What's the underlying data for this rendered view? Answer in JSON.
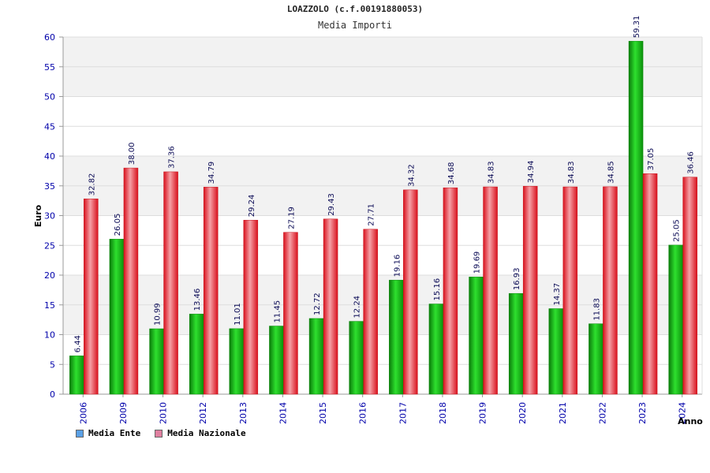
{
  "title": "LOAZZOLO (c.f.00191880053)",
  "subtitle": "Media Importi",
  "colors": {
    "ente": "#19b219",
    "nazionale": "#e8202a",
    "legend_ente": "#5aa0e6",
    "legend_nazionale": "#e080a0",
    "tick_text": "#0000aa",
    "band": "#f2f2f2"
  },
  "legend": [
    {
      "label": "Media Ente",
      "color_key": "legend_ente"
    },
    {
      "label": "Media Nazionale",
      "color_key": "legend_nazionale"
    }
  ],
  "chart_data": {
    "type": "bar",
    "title": "LOAZZOLO (c.f.00191880053)",
    "subtitle": "Media Importi",
    "xlabel": "Anno",
    "ylabel": "Euro",
    "ylim": [
      0,
      60
    ],
    "yticks": [
      0,
      5,
      10,
      15,
      20,
      25,
      30,
      35,
      40,
      45,
      50,
      55,
      60
    ],
    "grid": true,
    "legend_position": "bottom-left",
    "categories": [
      "2006",
      "2009",
      "2010",
      "2012",
      "2013",
      "2014",
      "2015",
      "2016",
      "2017",
      "2018",
      "2019",
      "2020",
      "2021",
      "2022",
      "2023",
      "2024"
    ],
    "series": [
      {
        "name": "Media Ente",
        "values": [
          6.44,
          26.05,
          10.99,
          13.46,
          11.01,
          11.45,
          12.72,
          12.24,
          19.16,
          15.16,
          19.69,
          16.93,
          14.37,
          11.83,
          59.31,
          25.05
        ]
      },
      {
        "name": "Media Nazionale",
        "values": [
          32.82,
          38.0,
          37.36,
          34.79,
          29.24,
          27.19,
          29.43,
          27.71,
          34.32,
          34.68,
          34.83,
          34.94,
          34.83,
          34.85,
          37.05,
          36.46
        ]
      }
    ]
  }
}
